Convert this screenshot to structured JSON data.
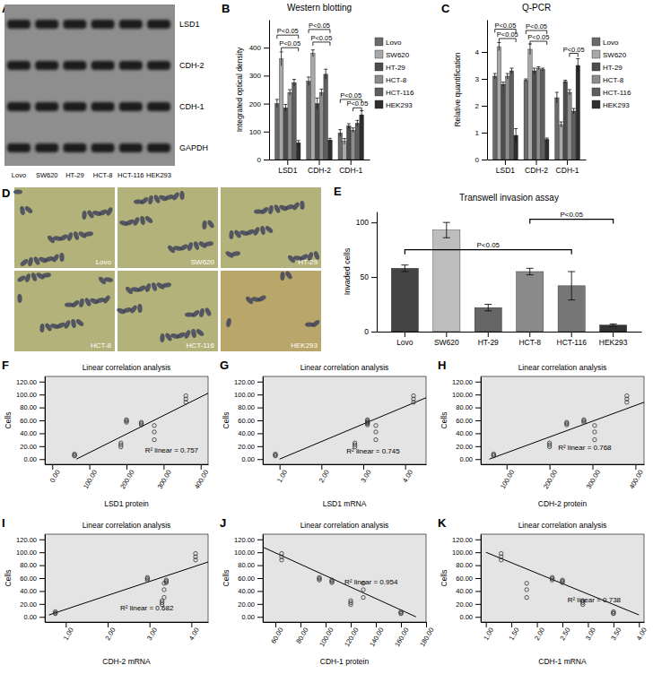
{
  "chart_data": [
    {
      "panel": "B",
      "type": "bar",
      "title": "Western blotting",
      "y_label": "Integrated optical density",
      "categories": [
        "LSD1",
        "CDH-2",
        "CDH-1"
      ],
      "series": [
        {
          "name": "Lovo",
          "color": "#6b6b6b",
          "values": [
            200,
            280,
            95
          ],
          "errors": [
            15,
            15,
            12
          ]
        },
        {
          "name": "SW620",
          "color": "#a8a8a8",
          "values": [
            360,
            380,
            65
          ],
          "errors": [
            25,
            12,
            10
          ]
        },
        {
          "name": "HT-29",
          "color": "#4d4d4d",
          "values": [
            185,
            200,
            120
          ],
          "errors": [
            12,
            20,
            8
          ]
        },
        {
          "name": "HCT-8",
          "color": "#8c8c8c",
          "values": [
            240,
            240,
            105
          ],
          "errors": [
            10,
            12,
            8
          ]
        },
        {
          "name": "HCT-116",
          "color": "#5e5e5e",
          "values": [
            275,
            305,
            130
          ],
          "errors": [
            12,
            18,
            10
          ]
        },
        {
          "name": "HEK293",
          "color": "#2e2e2e",
          "values": [
            60,
            70,
            160
          ],
          "errors": [
            8,
            6,
            15
          ]
        }
      ],
      "ylim": [
        0,
        500
      ],
      "yticks": [
        0,
        100,
        200,
        300,
        400
      ],
      "legend": "right",
      "annotations": [
        {
          "text": "P<0.05",
          "category": 0,
          "from": 1,
          "to": 5,
          "y": 400
        },
        {
          "text": "P<0.05",
          "category": 0,
          "from": 0,
          "to": 5,
          "y": 445
        },
        {
          "text": "P<0.05",
          "category": 1,
          "from": 1,
          "to": 5,
          "y": 420
        },
        {
          "text": "P<0.05",
          "category": 1,
          "from": 0,
          "to": 5,
          "y": 465
        },
        {
          "text": "P<0.05",
          "category": 2,
          "from": 3,
          "to": 5,
          "y": 185
        },
        {
          "text": "P<0.05",
          "category": 2,
          "from": 0,
          "to": 5,
          "y": 215
        }
      ]
    },
    {
      "panel": "C",
      "type": "bar",
      "title": "Q-PCR",
      "y_label": "Relative quantification",
      "categories": [
        "LSD1",
        "CDH-2",
        "CDH-1"
      ],
      "series": [
        {
          "name": "Lovo",
          "color": "#6b6b6b",
          "values": [
            3.1,
            2.95,
            2.3
          ],
          "errors": [
            0.1,
            0.05,
            0.2
          ]
        },
        {
          "name": "SW620",
          "color": "#a8a8a8",
          "values": [
            4.2,
            4.1,
            1.3
          ],
          "errors": [
            0.15,
            0.2,
            0.1
          ]
        },
        {
          "name": "HT-29",
          "color": "#4d4d4d",
          "values": [
            2.8,
            3.3,
            2.9
          ],
          "errors": [
            0.08,
            0.1,
            0.05
          ]
        },
        {
          "name": "HCT-8",
          "color": "#8c8c8c",
          "values": [
            3.1,
            3.4,
            2.5
          ],
          "errors": [
            0.1,
            0.05,
            0.1
          ]
        },
        {
          "name": "HCT-116",
          "color": "#5e5e5e",
          "values": [
            3.3,
            3.35,
            1.8
          ],
          "errors": [
            0.1,
            0.05,
            0.1
          ]
        },
        {
          "name": "HEK293",
          "color": "#2e2e2e",
          "values": [
            0.9,
            0.75,
            3.5
          ],
          "errors": [
            0.25,
            0.05,
            0.25
          ]
        }
      ],
      "ylim": [
        0,
        5.2
      ],
      "yticks": [
        0,
        1,
        2,
        3,
        4
      ],
      "legend": "right",
      "annotations": [
        {
          "text": "P<0.05",
          "category": 0,
          "from": 1,
          "to": 5,
          "y": 4.5
        },
        {
          "text": "P<0.05",
          "category": 0,
          "from": 0,
          "to": 5,
          "y": 4.85
        },
        {
          "text": "P<0.05",
          "category": 1,
          "from": 1,
          "to": 5,
          "y": 4.4
        },
        {
          "text": "P<0.05",
          "category": 1,
          "from": 0,
          "to": 5,
          "y": 4.8
        },
        {
          "text": "P<0.05",
          "category": 2,
          "from": 3,
          "to": 5,
          "y": 3.95
        }
      ]
    },
    {
      "panel": "E",
      "type": "bar",
      "title": "Transwell invasion assay",
      "y_label": "Invaded cells",
      "categories": [
        "Lovo",
        "SW620",
        "HT-29",
        "HCT-8",
        "HCT-116",
        "HEK293"
      ],
      "values": [
        58,
        93,
        22,
        55,
        42,
        6
      ],
      "errors": [
        3,
        7,
        3,
        3,
        13,
        1
      ],
      "colors": [
        "#444444",
        "#bdbdbd",
        "#666666",
        "#8a8a8a",
        "#777777",
        "#333333"
      ],
      "ylim": [
        0,
        110
      ],
      "yticks": [
        0,
        50,
        100
      ],
      "annotations": [
        {
          "text": "P<0.05",
          "from": 0,
          "to": 4,
          "y": 75
        },
        {
          "text": "P<0.05",
          "from": 3,
          "to": 5,
          "y": 103
        }
      ]
    },
    {
      "panel": "F",
      "type": "scatter",
      "title": "Linear correlation analysis",
      "x_label": "LSD1 protein",
      "y_label": "Cells",
      "marker": "circle",
      "x": [
        200,
        200,
        200,
        360,
        360,
        360,
        185,
        185,
        185,
        240,
        240,
        240,
        275,
        275,
        275,
        60,
        60,
        60
      ],
      "y": [
        57,
        59,
        61,
        88,
        93,
        98,
        19,
        22,
        25,
        53,
        55,
        57,
        30,
        42,
        52,
        5,
        6,
        8
      ],
      "trend": {
        "x": [
          65,
          420
        ],
        "y": [
          0,
          102
        ]
      },
      "annotations": [
        {
          "text": "R² linear = 0.757",
          "x": 250,
          "y": 10
        }
      ],
      "xlim": [
        -20,
        420
      ],
      "ylim": [
        -8,
        128
      ],
      "xticks": [
        {
          "value": 0,
          "label": "0.00"
        },
        {
          "value": 100,
          "label": "100.00"
        },
        {
          "value": 200,
          "label": "200.00"
        },
        {
          "value": 300,
          "label": "300.00"
        },
        {
          "value": 400,
          "label": "400.00"
        }
      ],
      "yticks": [
        {
          "value": 0,
          "label": "0.00"
        },
        {
          "value": 20,
          "label": "20.00"
        },
        {
          "value": 40,
          "label": "40.00"
        },
        {
          "value": 60,
          "label": "60.00"
        },
        {
          "value": 80,
          "label": "80.00"
        },
        {
          "value": 100,
          "label": "100.00"
        },
        {
          "value": 120,
          "label": "120.00"
        }
      ]
    },
    {
      "panel": "G",
      "type": "scatter",
      "title": "Linear correlation analysis",
      "x_label": "LSD1 mRNA",
      "y_label": "Cells",
      "marker": "circle",
      "x": [
        3.1,
        3.1,
        3.1,
        4.2,
        4.2,
        4.2,
        2.8,
        2.8,
        2.8,
        3.1,
        3.1,
        3.1,
        3.3,
        3.3,
        3.3,
        0.9,
        0.9,
        0.9
      ],
      "y": [
        57,
        59,
        61,
        88,
        93,
        98,
        19,
        22,
        25,
        53,
        55,
        57,
        30,
        42,
        52,
        5,
        6,
        8
      ],
      "trend": {
        "x": [
          1.0,
          4.5
        ],
        "y": [
          0,
          95
        ]
      },
      "annotations": [
        {
          "text": "R² linear = 0.745",
          "x": 2.6,
          "y": 8
        }
      ],
      "xlim": [
        0.6,
        4.5
      ],
      "ylim": [
        -8,
        128
      ],
      "xticks": [
        {
          "value": 1,
          "label": "1.00"
        },
        {
          "value": 2,
          "label": "2.00"
        },
        {
          "value": 3,
          "label": "3.00"
        },
        {
          "value": 4,
          "label": "4.00"
        }
      ],
      "yticks": [
        {
          "value": 0,
          "label": "0.00"
        },
        {
          "value": 20,
          "label": "20.00"
        },
        {
          "value": 40,
          "label": "40.00"
        },
        {
          "value": 60,
          "label": "60.00"
        },
        {
          "value": 80,
          "label": "80.00"
        },
        {
          "value": 100,
          "label": "100.00"
        },
        {
          "value": 120,
          "label": "120.00"
        }
      ]
    },
    {
      "panel": "H",
      "type": "scatter",
      "title": "Linear correlation analysis",
      "x_label": "CDH-2 protein",
      "y_label": "Cells",
      "marker": "circle",
      "x": [
        280,
        280,
        280,
        380,
        380,
        380,
        200,
        200,
        200,
        240,
        240,
        240,
        305,
        305,
        305,
        70,
        70,
        70
      ],
      "y": [
        57,
        59,
        61,
        88,
        93,
        98,
        19,
        22,
        25,
        53,
        55,
        57,
        30,
        42,
        52,
        5,
        6,
        8
      ],
      "trend": {
        "x": [
          60,
          420
        ],
        "y": [
          0,
          88
        ]
      },
      "annotations": [
        {
          "text": "R² linear = 0.768",
          "x": 220,
          "y": 14
        }
      ],
      "xlim": [
        40,
        420
      ],
      "ylim": [
        -8,
        128
      ],
      "xticks": [
        {
          "value": 100,
          "label": "100.00"
        },
        {
          "value": 200,
          "label": "200.00"
        },
        {
          "value": 300,
          "label": "300.00"
        },
        {
          "value": 400,
          "label": "400.00"
        }
      ],
      "yticks": [
        {
          "value": 0,
          "label": "0.00"
        },
        {
          "value": 20,
          "label": "20.00"
        },
        {
          "value": 40,
          "label": "40.00"
        },
        {
          "value": 60,
          "label": "60.00"
        },
        {
          "value": 80,
          "label": "80.00"
        },
        {
          "value": 100,
          "label": "100.00"
        },
        {
          "value": 120,
          "label": "120.00"
        }
      ]
    },
    {
      "panel": "I",
      "type": "scatter",
      "title": "Linear correlation analysis",
      "x_label": "CDH-2 mRNA",
      "y_label": "Cells",
      "marker": "circle",
      "x": [
        2.95,
        2.95,
        2.95,
        4.1,
        4.1,
        4.1,
        3.3,
        3.3,
        3.3,
        3.4,
        3.4,
        3.4,
        3.35,
        3.35,
        3.35,
        0.75,
        0.75,
        0.75
      ],
      "y": [
        57,
        59,
        61,
        88,
        93,
        98,
        19,
        22,
        25,
        53,
        55,
        57,
        30,
        42,
        52,
        5,
        6,
        8
      ],
      "trend": {
        "x": [
          0.6,
          4.4
        ],
        "y": [
          3,
          85
        ]
      },
      "annotations": [
        {
          "text": "R² linear = 0.682",
          "x": 2.3,
          "y": 10
        }
      ],
      "xlim": [
        0.5,
        4.4
      ],
      "ylim": [
        -8,
        128
      ],
      "xticks": [
        {
          "value": 1,
          "label": "1.00"
        },
        {
          "value": 2,
          "label": "2.00"
        },
        {
          "value": 3,
          "label": "3.00"
        },
        {
          "value": 4,
          "label": "4.00"
        }
      ],
      "yticks": [
        {
          "value": 0,
          "label": "0.00"
        },
        {
          "value": 20,
          "label": "20.00"
        },
        {
          "value": 40,
          "label": "40.00"
        },
        {
          "value": 60,
          "label": "60.00"
        },
        {
          "value": 80,
          "label": "80.00"
        },
        {
          "value": 100,
          "label": "100.00"
        },
        {
          "value": 120,
          "label": "120.00"
        }
      ]
    },
    {
      "panel": "J",
      "type": "scatter",
      "title": "Linear correlation analysis",
      "x_label": "CDH-1 protein",
      "y_label": "Cells",
      "marker": "circle",
      "x": [
        95,
        95,
        95,
        65,
        65,
        65,
        120,
        120,
        120,
        105,
        105,
        105,
        130,
        130,
        130,
        160,
        160,
        160
      ],
      "y": [
        57,
        59,
        61,
        88,
        93,
        98,
        19,
        22,
        25,
        53,
        55,
        57,
        30,
        42,
        52,
        5,
        6,
        8
      ],
      "trend": {
        "x": [
          50,
          172
        ],
        "y": [
          108,
          0
        ]
      },
      "annotations": [
        {
          "text": "R² linear = 0.954",
          "x": 115,
          "y": 50
        }
      ],
      "xlim": [
        50,
        180
      ],
      "ylim": [
        -8,
        128
      ],
      "xticks": [
        {
          "value": 60,
          "label": "60.00"
        },
        {
          "value": 80,
          "label": "80.00"
        },
        {
          "value": 100,
          "label": "100.00"
        },
        {
          "value": 120,
          "label": "120.00"
        },
        {
          "value": 140,
          "label": "140.00"
        },
        {
          "value": 160,
          "label": "160.00"
        },
        {
          "value": 180,
          "label": "180.00"
        }
      ],
      "yticks": [
        {
          "value": 0,
          "label": "0.00"
        },
        {
          "value": 20,
          "label": "20.00"
        },
        {
          "value": 40,
          "label": "40.00"
        },
        {
          "value": 60,
          "label": "60.00"
        },
        {
          "value": 80,
          "label": "80.00"
        },
        {
          "value": 100,
          "label": "100.00"
        },
        {
          "value": 120,
          "label": "120.00"
        }
      ]
    },
    {
      "panel": "K",
      "type": "scatter",
      "title": "Linear correlation analysis",
      "x_label": "CDH-1 mRNA",
      "y_label": "Cells",
      "marker": "circle",
      "x": [
        2.3,
        2.3,
        2.3,
        1.3,
        1.3,
        1.3,
        2.9,
        2.9,
        2.9,
        2.5,
        2.5,
        2.5,
        1.8,
        1.8,
        1.8,
        3.5,
        3.5,
        3.5
      ],
      "y": [
        57,
        59,
        61,
        88,
        93,
        98,
        19,
        22,
        25,
        53,
        55,
        57,
        30,
        42,
        52,
        5,
        6,
        8
      ],
      "trend": {
        "x": [
          1.0,
          4.0
        ],
        "y": [
          100,
          3
        ]
      },
      "annotations": [
        {
          "text": "R² linear = 0.738",
          "x": 2.6,
          "y": 22
        }
      ],
      "xlim": [
        0.9,
        4.1
      ],
      "ylim": [
        -8,
        128
      ],
      "xticks": [
        {
          "value": 1,
          "label": "1.00"
        },
        {
          "value": 1.5,
          "label": "1.50"
        },
        {
          "value": 2,
          "label": "2.00"
        },
        {
          "value": 2.5,
          "label": "2.50"
        },
        {
          "value": 3,
          "label": "3.00"
        },
        {
          "value": 3.5,
          "label": "3.50"
        },
        {
          "value": 4,
          "label": "4.00"
        }
      ],
      "yticks": [
        {
          "value": 0,
          "label": "0.00"
        },
        {
          "value": 20,
          "label": "20.00"
        },
        {
          "value": 40,
          "label": "40.00"
        },
        {
          "value": 60,
          "label": "60.00"
        },
        {
          "value": 80,
          "label": "80.00"
        },
        {
          "value": 100,
          "label": "100.00"
        },
        {
          "value": 120,
          "label": "120.00"
        }
      ]
    }
  ],
  "blot": {
    "panel": "A",
    "bands": [
      "LSD1",
      "CDH-2",
      "CDH-1",
      "GAPDH"
    ],
    "lanes": [
      "Lovo",
      "SW620",
      "HT-29",
      "HCT-8",
      "HCT-116",
      "HEK293"
    ]
  },
  "micrographs": {
    "panel": "D",
    "labels": [
      "Lovo",
      "SW620",
      "HT-29",
      "HCT-8",
      "HCT-116",
      "HEK293"
    ]
  }
}
